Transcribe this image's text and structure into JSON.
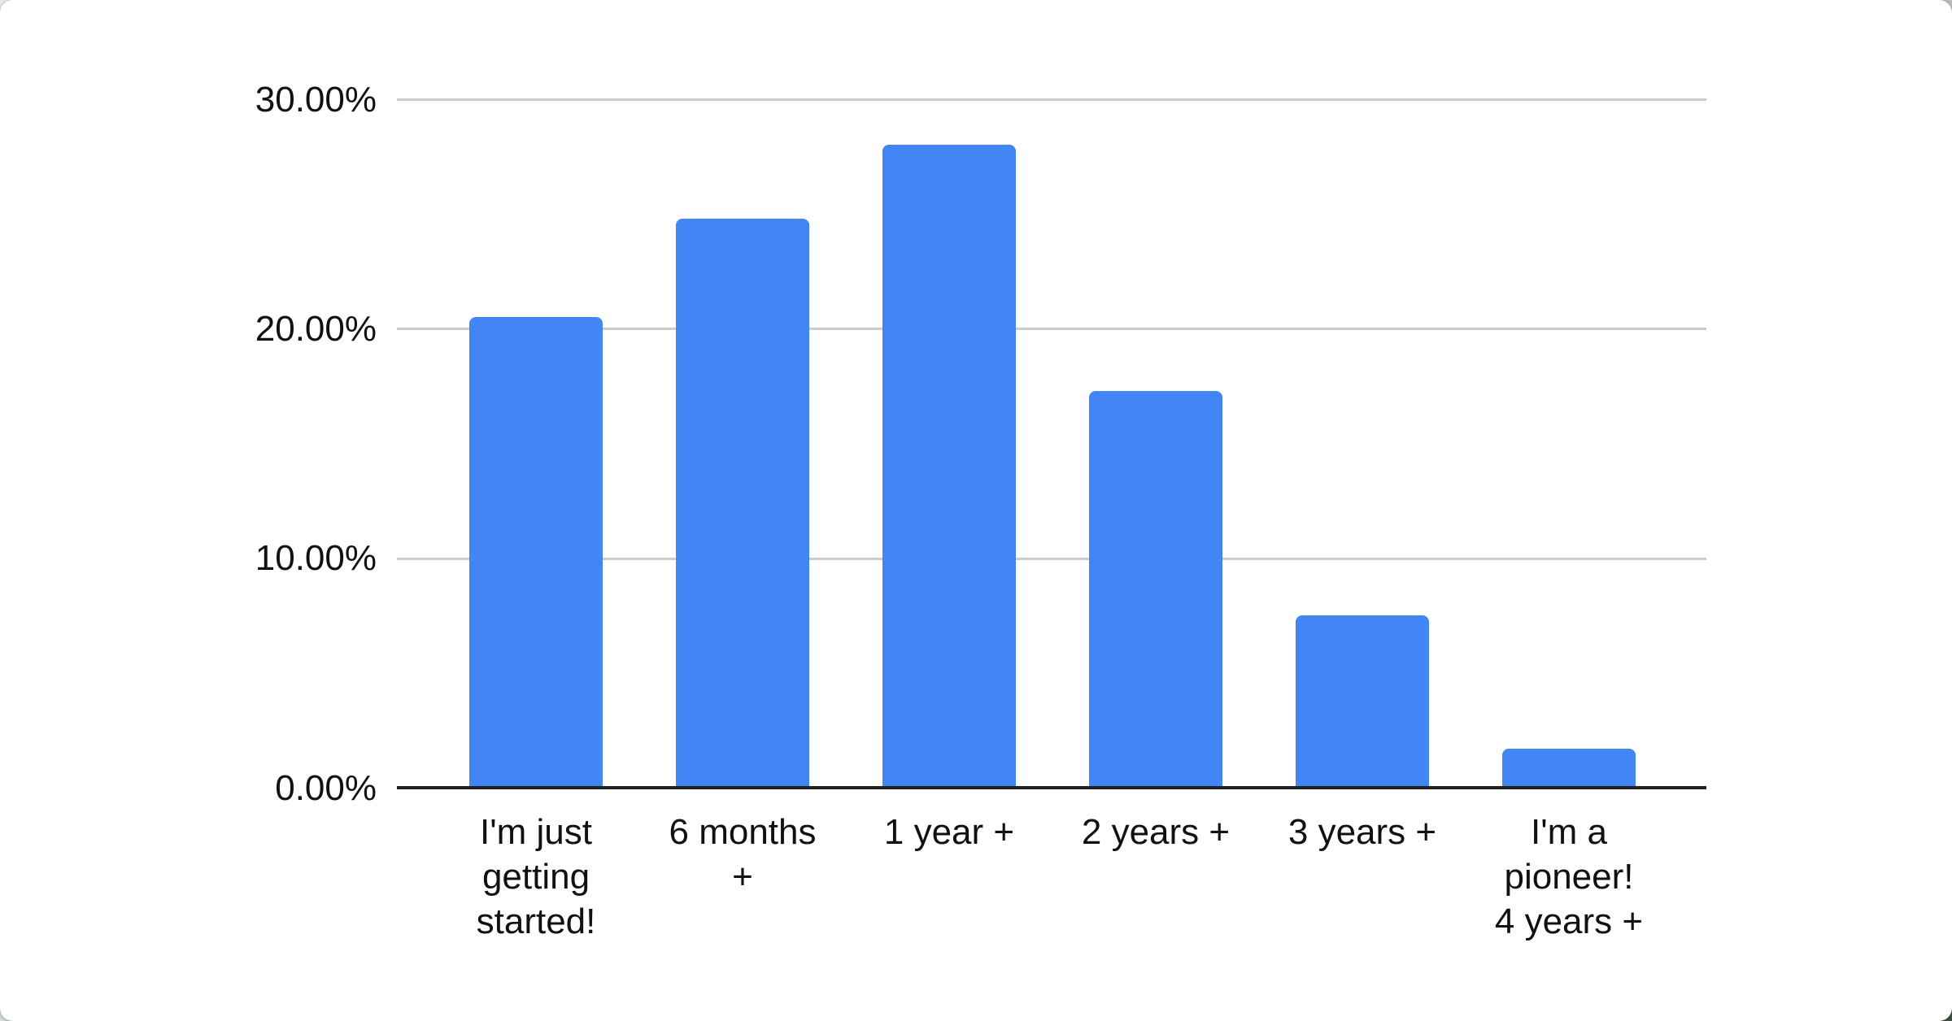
{
  "page": {
    "kind": "embedded spreadsheet bar chart on white card",
    "card_background": "#ffffff",
    "page_background_top_left": "#e4e9e5",
    "page_background_bottom_right": "#3e5144"
  },
  "chart_data": {
    "type": "bar",
    "title": "",
    "xlabel": "",
    "ylabel": "",
    "categories": [
      "I'm just getting started!",
      "6 months +",
      "1 year +",
      "2 years +",
      "3 years +",
      "I'm a pioneer! 4 years +"
    ],
    "category_lines": [
      [
        "I'm just",
        "getting",
        "started!"
      ],
      [
        "6 months",
        "+"
      ],
      [
        "1 year +"
      ],
      [
        "2 years +"
      ],
      [
        "3 years +"
      ],
      [
        "I'm a",
        "pioneer!",
        "4 years +"
      ]
    ],
    "values": [
      20.5,
      24.8,
      28.0,
      17.3,
      7.5,
      1.7
    ],
    "value_unit": "%",
    "ylim": [
      0,
      30
    ],
    "y_ticks": [
      {
        "value": 30,
        "label": "30.00%"
      },
      {
        "value": 20,
        "label": "20.00%"
      },
      {
        "value": 10,
        "label": "10.00%"
      },
      {
        "value": 0,
        "label": "0.00%"
      }
    ],
    "grid": true,
    "legend_position": "none",
    "bar_color": "#4285F4",
    "gridline_color": "#cccccc",
    "axis_color": "#212121",
    "label_color": "#111111"
  }
}
